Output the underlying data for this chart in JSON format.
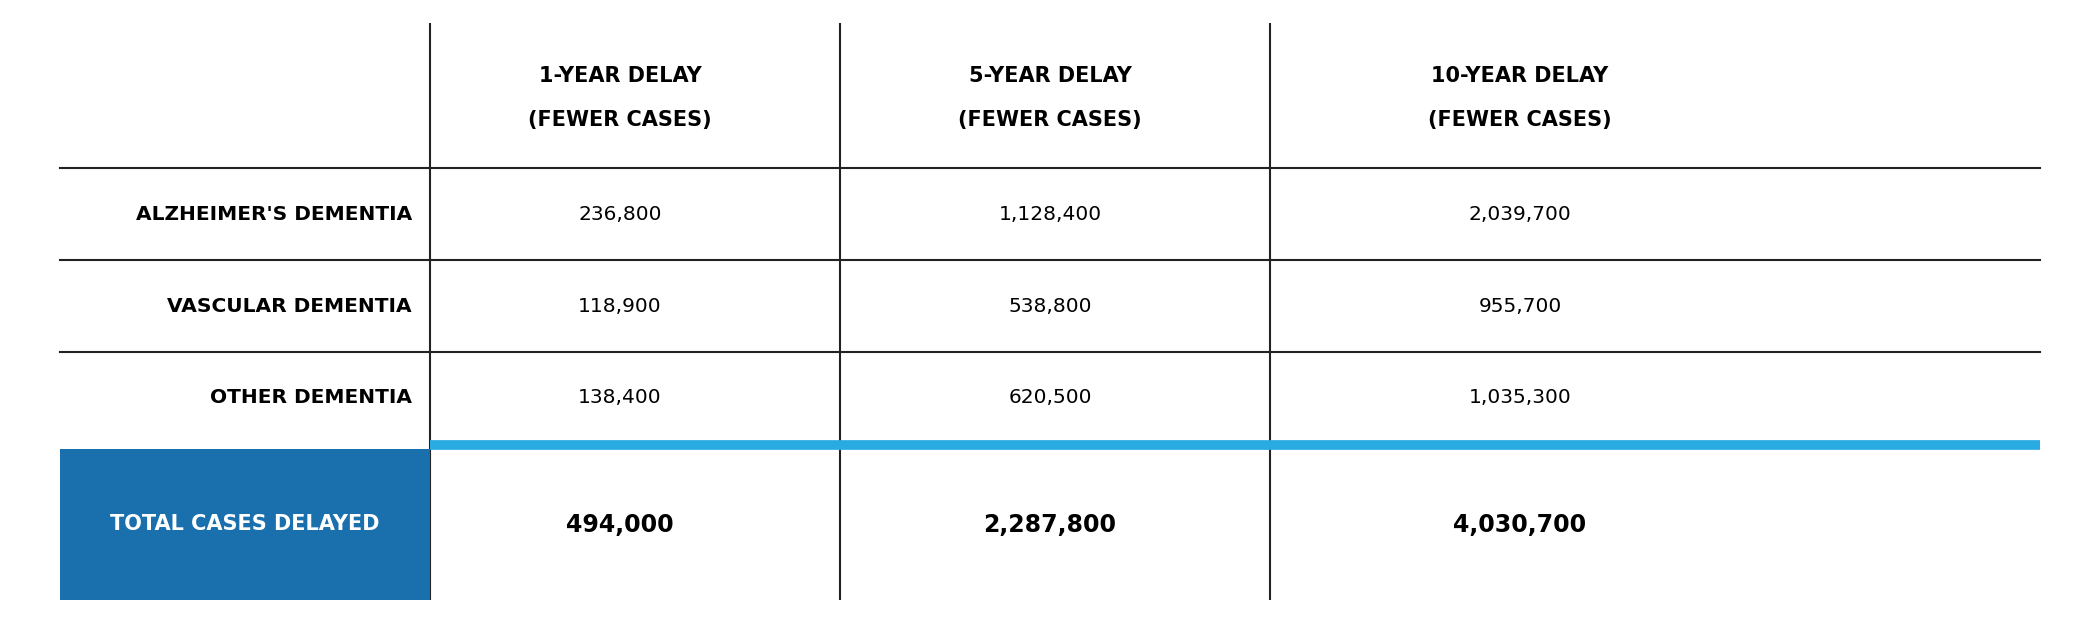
{
  "header_line1": [
    "",
    "1-YEAR DELAY",
    "5-YEAR DELAY",
    "10-YEAR DELAY"
  ],
  "header_line2": [
    "",
    "(FEWER CASES)",
    "(FEWER CASES)",
    "(FEWER CASES)"
  ],
  "rows": [
    [
      "ALZHEIMER'S DEMENTIA",
      "236,800",
      "1,128,400",
      "2,039,700"
    ],
    [
      "VASCULAR DEMENTIA",
      "118,900",
      "538,800",
      "955,700"
    ],
    [
      "OTHER DEMENTIA",
      "138,400",
      "620,500",
      "1,035,300"
    ]
  ],
  "total_label": "TOTAL CASES DELAYED",
  "total_values": [
    "494,000",
    "2,287,800",
    "4,030,700"
  ],
  "bg_color": "#ffffff",
  "header_text_color": "#000000",
  "row_text_color": "#000000",
  "total_bg_color": "#1a6fad",
  "total_text_color": "#ffffff",
  "total_value_color": "#000000",
  "separator_color": "#222222",
  "blue_line_color": "#29abe2",
  "header_fontsize": 15,
  "row_fontsize": 14.5,
  "total_label_fontsize": 15,
  "total_value_fontsize": 17
}
